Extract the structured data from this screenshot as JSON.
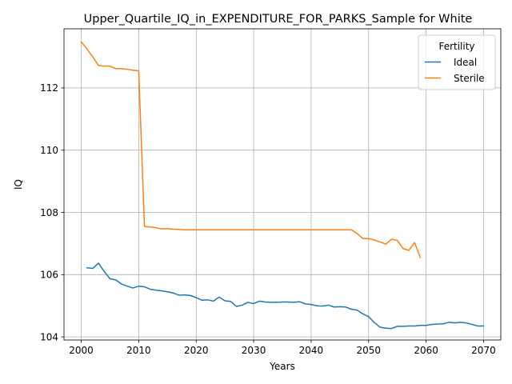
{
  "chart_data": {
    "type": "line",
    "title": "Upper_Quartile_IQ_in_EXPENDITURE_FOR_PARKS_Sample for White",
    "xlabel": "Years",
    "ylabel": "IQ",
    "xlim": [
      1997,
      2073
    ],
    "ylim": [
      103.9,
      113.9
    ],
    "xticks": [
      2000,
      2010,
      2020,
      2030,
      2040,
      2050,
      2060,
      2070
    ],
    "yticks": [
      104,
      106,
      108,
      110,
      112
    ],
    "grid": true,
    "legend": {
      "title": "Fertility",
      "placement": "top-right"
    },
    "series": [
      {
        "name": "Ideal",
        "color": "#1f77b4",
        "x": [
          2001,
          2002,
          2003,
          2004,
          2005,
          2006,
          2007,
          2008,
          2009,
          2010,
          2011,
          2012,
          2013,
          2014,
          2015,
          2016,
          2017,
          2018,
          2019,
          2020,
          2021,
          2022,
          2023,
          2024,
          2025,
          2026,
          2027,
          2028,
          2029,
          2030,
          2031,
          2032,
          2033,
          2034,
          2035,
          2036,
          2037,
          2038,
          2039,
          2040,
          2041,
          2042,
          2043,
          2044,
          2045,
          2046,
          2047,
          2048,
          2049,
          2050,
          2051,
          2052,
          2053,
          2054,
          2055,
          2056,
          2057,
          2058,
          2059,
          2060,
          2061,
          2062,
          2063,
          2064,
          2065,
          2066,
          2067,
          2068,
          2069,
          2070
        ],
        "values": [
          106.22,
          106.2,
          106.37,
          106.1,
          105.87,
          105.83,
          105.7,
          105.63,
          105.57,
          105.63,
          105.61,
          105.53,
          105.5,
          105.48,
          105.45,
          105.41,
          105.34,
          105.35,
          105.33,
          105.26,
          105.18,
          105.19,
          105.15,
          105.28,
          105.16,
          105.14,
          104.98,
          105.02,
          105.11,
          105.07,
          105.15,
          105.12,
          105.11,
          105.11,
          105.12,
          105.12,
          105.11,
          105.13,
          105.06,
          105.04,
          105.0,
          104.99,
          105.02,
          104.96,
          104.97,
          104.96,
          104.89,
          104.86,
          104.74,
          104.65,
          104.46,
          104.31,
          104.28,
          104.27,
          104.34,
          104.34,
          104.35,
          104.35,
          104.37,
          104.37,
          104.4,
          104.41,
          104.42,
          104.47,
          104.45,
          104.47,
          104.45,
          104.4,
          104.35,
          104.35
        ]
      },
      {
        "name": "Sterile",
        "color": "#ff7f0e",
        "x": [
          2000,
          2001,
          2002,
          2003,
          2004,
          2005,
          2006,
          2007,
          2008,
          2009,
          2010,
          2011,
          2012,
          2013,
          2014,
          2015,
          2016,
          2017,
          2018,
          2019,
          2020,
          2021,
          2022,
          2023,
          2024,
          2025,
          2026,
          2027,
          2028,
          2029,
          2030,
          2031,
          2032,
          2033,
          2034,
          2035,
          2036,
          2037,
          2038,
          2039,
          2040,
          2041,
          2042,
          2043,
          2044,
          2045,
          2046,
          2047,
          2048,
          2049,
          2050,
          2051,
          2052,
          2053,
          2054,
          2055,
          2056,
          2057,
          2058,
          2059
        ],
        "values": [
          113.48,
          113.25,
          113.0,
          112.72,
          112.7,
          112.7,
          112.62,
          112.62,
          112.6,
          112.57,
          112.55,
          107.55,
          107.53,
          107.51,
          107.47,
          107.48,
          107.46,
          107.45,
          107.44,
          107.44,
          107.44,
          107.44,
          107.44,
          107.44,
          107.44,
          107.44,
          107.44,
          107.44,
          107.44,
          107.44,
          107.44,
          107.44,
          107.44,
          107.44,
          107.44,
          107.44,
          107.44,
          107.44,
          107.44,
          107.44,
          107.44,
          107.44,
          107.44,
          107.44,
          107.44,
          107.44,
          107.44,
          107.44,
          107.32,
          107.16,
          107.16,
          107.11,
          107.05,
          106.98,
          107.14,
          107.1,
          106.84,
          106.78,
          107.03,
          106.55
        ]
      }
    ]
  }
}
